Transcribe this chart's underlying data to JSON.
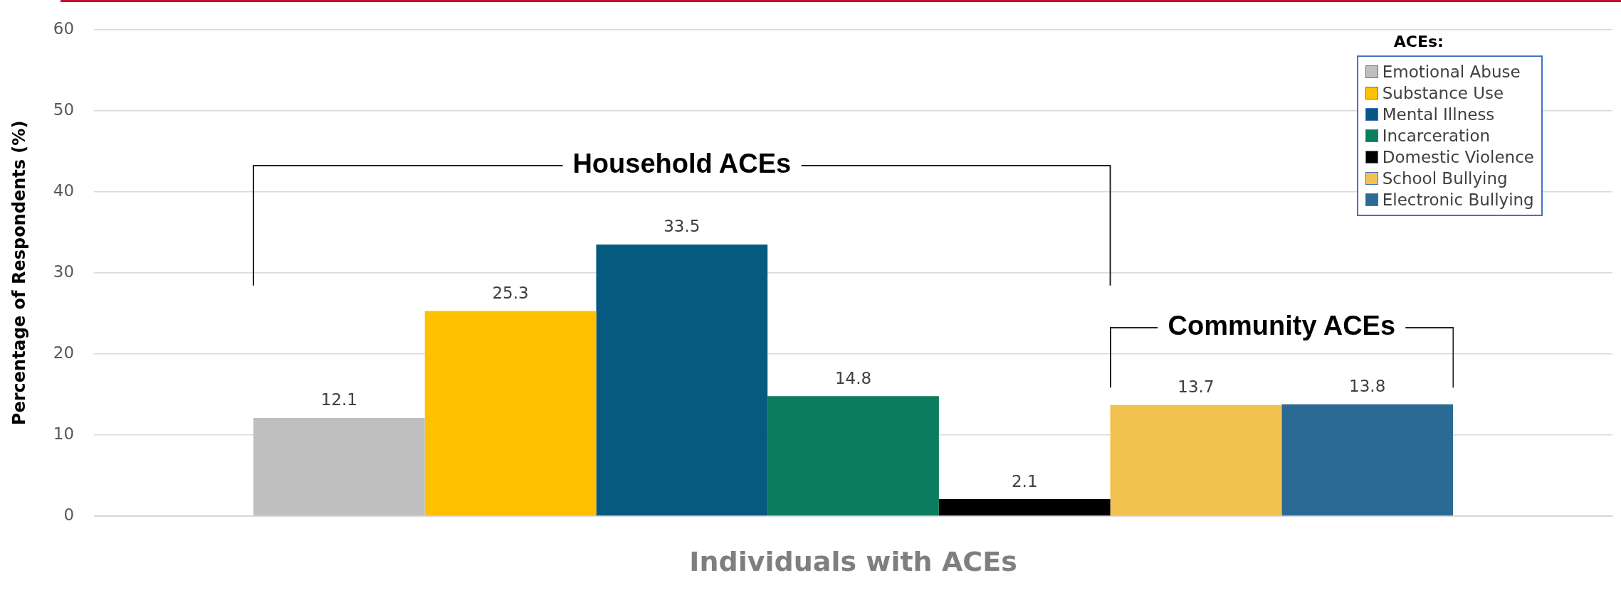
{
  "chart_data": {
    "type": "bar",
    "categories": [
      null
    ],
    "xlabel": "Individuals with ACEs",
    "ylabel": "Percentage of Respondents (%)",
    "legend_title": "ACEs:",
    "series": [
      {
        "name": "Emotional Abuse",
        "color": "#bfbfbf",
        "values": [
          12.1
        ]
      },
      {
        "name": "Substance Use",
        "color": "#ffc000",
        "values": [
          25.3
        ]
      },
      {
        "name": "Mental Illness",
        "color": "#065a80",
        "values": [
          33.5
        ]
      },
      {
        "name": "Incarceration",
        "color": "#0b7c5e",
        "values": [
          14.8
        ]
      },
      {
        "name": "Domestic Violence",
        "color": "#000000",
        "values": [
          2.1
        ]
      },
      {
        "name": "School Bullying",
        "color": "#f2c14e",
        "values": [
          13.7
        ]
      },
      {
        "name": "Electronic Bullying",
        "color": "#2a6a94",
        "values": [
          13.8
        ]
      }
    ],
    "ylim": [
      0,
      60
    ],
    "yticks": [
      0,
      10,
      20,
      30,
      40,
      50,
      60
    ],
    "grid": "y",
    "legend": "top right",
    "data_labels": true,
    "annotations": [
      "Household ACEs",
      "Community ACEs"
    ]
  }
}
